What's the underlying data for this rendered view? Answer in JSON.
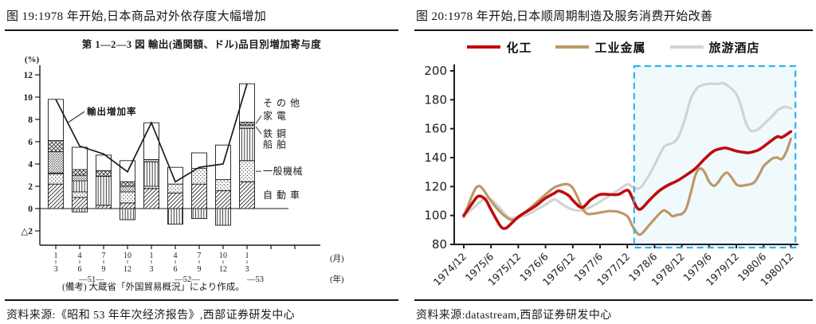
{
  "panels": {
    "left": {
      "title": "图 19:1978 年开始,日本商品对外依存度大幅增加",
      "source": "资料来源:《昭和 53 年年次经济报告》,西部证券研发中心"
    },
    "right": {
      "title": "图 20:1978 年开始,日本顺周期制造及服务消费开始改善",
      "source": "资料来源:datastream,西部证券研发中心"
    }
  },
  "chart_data": [
    {
      "type": "bar",
      "title": "第 1―2―3 図  輸出(通関額、ドル)品目別増加寄与度",
      "unit_label": "(%)",
      "yticks": [
        12,
        10,
        8,
        6,
        4,
        2,
        0,
        -2
      ],
      "ytick_labels": [
        "12",
        "10",
        "8",
        "6",
        "4",
        "2",
        "0",
        "△2"
      ],
      "categories": [
        "昭和51年1~3月",
        "昭和51年4~6月",
        "昭和51年7~9月",
        "昭和51年10~12月",
        "昭和52年1~3月",
        "昭和52年4~6月",
        "昭和52年7~9月",
        "昭和52年10~12月",
        "昭和53年1~3月"
      ],
      "quarter_top": [
        "1",
        "4",
        "7",
        "10",
        "1",
        "4",
        "7",
        "10",
        "1"
      ],
      "quarter_bottom": [
        "3",
        "6",
        "9",
        "12",
        "3",
        "6",
        "9",
        "12",
        "3"
      ],
      "year_groups": [
        {
          "label": "―51―",
          "center_bar": 1.5
        },
        {
          "label": "―52―",
          "center_bar": 5.5
        },
        {
          "label": "―53",
          "center_bar": 8.35
        }
      ],
      "axis_units": {
        "month": "(月)",
        "year": "(年)"
      },
      "stack_order": [
        "自動車",
        "一般機械",
        "船舶",
        "鉄鋼",
        "家電",
        "その他"
      ],
      "bars": [
        {
          "segments": [
            2.2,
            0.9,
            0.1,
            1.9,
            1.0,
            3.7
          ],
          "negative": 0
        },
        {
          "segments": [
            1.0,
            0.5,
            1.0,
            0.5,
            0.5,
            2.0
          ],
          "negative": -0.3
        },
        {
          "segments": [
            0.3,
            0.0,
            2.6,
            0.0,
            0.5,
            1.4
          ],
          "negative": 0
        },
        {
          "segments": [
            0.5,
            1.0,
            0.0,
            0.5,
            0.4,
            1.9
          ],
          "negative": -1.0
        },
        {
          "segments": [
            1.8,
            0.2,
            2.2,
            0.2,
            0.0,
            3.3
          ],
          "negative": 0
        },
        {
          "segments": [
            1.4,
            0.8,
            0.0,
            0.0,
            0.0,
            1.5
          ],
          "negative": -1.4
        },
        {
          "segments": [
            2.2,
            1.4,
            0.0,
            0.0,
            0.0,
            1.4
          ],
          "negative": -0.9
        },
        {
          "segments": [
            1.6,
            1.0,
            0.0,
            0.0,
            0.0,
            3.1
          ],
          "negative": -1.5
        },
        {
          "segments": [
            2.4,
            1.9,
            2.9,
            0.3,
            0.25,
            3.45
          ],
          "negative": 0
        }
      ],
      "line": {
        "name": "輸出増加率",
        "values": [
          9.8,
          5.6,
          4.9,
          3.3,
          7.7,
          2.4,
          3.7,
          4.0,
          11.2
        ]
      },
      "note": "(備考) 大蔵省「外国貿易概況」により作成。"
    },
    {
      "type": "line",
      "ylim": [
        80,
        200
      ],
      "yticks": [
        200,
        180,
        160,
        140,
        120,
        100,
        80
      ],
      "x_tick_labels": [
        "1974/12",
        "1975/6",
        "1975/12",
        "1976/6",
        "1976/12",
        "1977/6",
        "1977/12",
        "1978/6",
        "1978/12",
        "1979/6",
        "1979/12",
        "1980/6",
        "1980/12"
      ],
      "months_per_tick": 6,
      "total_months": 72,
      "highlight_box": {
        "start_month": 37.5,
        "end_month": 73,
        "border": "#2fb4e9",
        "fill": "#2fb4e9",
        "fill_opacity": 0.07
      },
      "series": [
        {
          "name": "化工",
          "color": "#bf0c0e",
          "width": 3.6,
          "points": [
            [
              0,
              100
            ],
            [
              2,
              109
            ],
            [
              3,
              113
            ],
            [
              4,
              113
            ],
            [
              5,
              110
            ],
            [
              6,
              104
            ],
            [
              8,
              93
            ],
            [
              9,
              91
            ],
            [
              10,
              93
            ],
            [
              12,
              99
            ],
            [
              14,
              103
            ],
            [
              16,
              107
            ],
            [
              18,
              112
            ],
            [
              20,
              115.5
            ],
            [
              21,
              117
            ],
            [
              23,
              114
            ],
            [
              24,
              110.5
            ],
            [
              26,
              105.5
            ],
            [
              28,
              111
            ],
            [
              30,
              114.5
            ],
            [
              32,
              114.5
            ],
            [
              34,
              114.5
            ],
            [
              36,
              117.5
            ],
            [
              37,
              113
            ],
            [
              38,
              106
            ],
            [
              39,
              104.5
            ],
            [
              41,
              111
            ],
            [
              43,
              117
            ],
            [
              45,
              121
            ],
            [
              47,
              124
            ],
            [
              49,
              128
            ],
            [
              51,
              132.5
            ],
            [
              53,
              139
            ],
            [
              55,
              144.5
            ],
            [
              57,
              146.5
            ],
            [
              58,
              146.5
            ],
            [
              60,
              144.5
            ],
            [
              62,
              143.5
            ],
            [
              63,
              143.5
            ],
            [
              65,
              145.5
            ],
            [
              67,
              150
            ],
            [
              69,
              154.5
            ],
            [
              70,
              154
            ],
            [
              72,
              158
            ]
          ]
        },
        {
          "name": "工业金属",
          "color": "#bd9868",
          "width": 3.2,
          "points": [
            [
              0,
              99
            ],
            [
              2,
              115
            ],
            [
              3,
              120
            ],
            [
              4,
              119
            ],
            [
              6,
              110
            ],
            [
              8,
              102.5
            ],
            [
              10,
              97.5
            ],
            [
              11,
              97
            ],
            [
              12,
              98.5
            ],
            [
              14,
              103.5
            ],
            [
              16,
              109
            ],
            [
              18,
              114.5
            ],
            [
              20,
              119.5
            ],
            [
              22,
              121.5
            ],
            [
              23,
              121.5
            ],
            [
              24,
              119
            ],
            [
              25,
              113
            ],
            [
              26,
              105.5
            ],
            [
              27,
              101.5
            ],
            [
              28,
              101
            ],
            [
              30,
              102
            ],
            [
              32,
              103
            ],
            [
              34,
              102.5
            ],
            [
              36,
              99.5
            ],
            [
              37,
              93.5
            ],
            [
              38,
              88.5
            ],
            [
              39,
              87
            ],
            [
              41,
              94
            ],
            [
              43,
              101
            ],
            [
              44,
              103.5
            ],
            [
              45,
              102
            ],
            [
              46,
              99.5
            ],
            [
              47,
              100.5
            ],
            [
              48,
              101
            ],
            [
              49,
              105
            ],
            [
              50,
              116
            ],
            [
              51,
              128
            ],
            [
              52,
              132.5
            ],
            [
              53,
              130
            ],
            [
              54,
              123.5
            ],
            [
              55,
              120.5
            ],
            [
              56,
              123
            ],
            [
              57,
              127.5
            ],
            [
              58,
              129.5
            ],
            [
              59,
              126
            ],
            [
              60,
              121.5
            ],
            [
              61,
              120.5
            ],
            [
              62,
              121
            ],
            [
              63,
              121.5
            ],
            [
              64,
              123
            ],
            [
              65,
              128
            ],
            [
              66,
              134
            ],
            [
              67,
              137
            ],
            [
              68,
              139.5
            ],
            [
              69,
              140
            ],
            [
              70,
              139
            ],
            [
              71,
              144
            ],
            [
              72,
              153
            ]
          ]
        },
        {
          "name": "旅游酒店",
          "color": "#d3d3d3",
          "width": 3.2,
          "points": [
            [
              0,
              100
            ],
            [
              2,
              105
            ],
            [
              4,
              110.5
            ],
            [
              5,
              112
            ],
            [
              6,
              111
            ],
            [
              8,
              105
            ],
            [
              10,
              98.5
            ],
            [
              12,
              99
            ],
            [
              14,
              100.5
            ],
            [
              16,
              104
            ],
            [
              18,
              107.5
            ],
            [
              20,
              111
            ],
            [
              22,
              107
            ],
            [
              24,
              104
            ],
            [
              26,
              103.5
            ],
            [
              28,
              106
            ],
            [
              30,
              109.5
            ],
            [
              32,
              113.5
            ],
            [
              34,
              117.5
            ],
            [
              36,
              121.5
            ],
            [
              37,
              120
            ],
            [
              38,
              118.5
            ],
            [
              39,
              119.5
            ],
            [
              40,
              124
            ],
            [
              41,
              129
            ],
            [
              42,
              135
            ],
            [
              44,
              147
            ],
            [
              45,
              149
            ],
            [
              46,
              150
            ],
            [
              47,
              153
            ],
            [
              48,
              160
            ],
            [
              49,
              170
            ],
            [
              50,
              181
            ],
            [
              51,
              186.5
            ],
            [
              52,
              189.5
            ],
            [
              54,
              191
            ],
            [
              56,
              191
            ],
            [
              57,
              191.5
            ],
            [
              58,
              190
            ],
            [
              59,
              187.5
            ],
            [
              60,
              184
            ],
            [
              61,
              176
            ],
            [
              62,
              165
            ],
            [
              63,
              159
            ],
            [
              64,
              158.5
            ],
            [
              65,
              160
            ],
            [
              66,
              163
            ],
            [
              68,
              169
            ],
            [
              69,
              172.5
            ],
            [
              70,
              174.5
            ],
            [
              71,
              175
            ],
            [
              72,
              174
            ]
          ]
        }
      ]
    }
  ]
}
